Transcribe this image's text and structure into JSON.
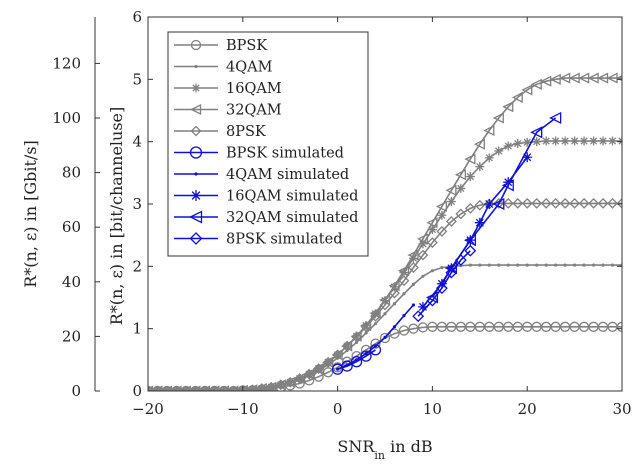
{
  "chart_data": {
    "type": "line",
    "title": "",
    "xlabel": {
      "main": "SNR",
      "sub": "in",
      "rest": " in dB"
    },
    "ylabel_left": "R*(n, ε) in [Gbit/s]",
    "ylabel_right": "R*(n, ε) in [bit/channeluse]",
    "xlim": [
      -20,
      30
    ],
    "ylim": [
      0,
      6
    ],
    "ylim_left": [
      0,
      137
    ],
    "xticks": [
      -20,
      -10,
      0,
      10,
      20,
      30
    ],
    "yticks": [
      0,
      1,
      2,
      3,
      4,
      5,
      6
    ],
    "yticks_left": [
      0,
      20,
      40,
      60,
      80,
      100,
      120
    ],
    "xtick_labels": [
      "−20",
      "−10",
      "0",
      "10",
      "20",
      "30"
    ],
    "ytick_labels": [
      "0",
      "1",
      "2",
      "3",
      "4",
      "5",
      "6"
    ],
    "ytick_labels_left": [
      "0",
      "20",
      "40",
      "60",
      "80",
      "100",
      "120"
    ],
    "grid": false,
    "legend_position": "top-left",
    "series_x": [
      -20,
      -19,
      -18,
      -17,
      -16,
      -15,
      -14,
      -13,
      -12,
      -11,
      -10,
      -9,
      -8,
      -7,
      -6,
      -5,
      -4,
      -3,
      -2,
      -1,
      0,
      1,
      2,
      3,
      4,
      5,
      6,
      7,
      8,
      9,
      10,
      11,
      12,
      13,
      14,
      15,
      16,
      17,
      18,
      19,
      20,
      21,
      22,
      23,
      24,
      25,
      26,
      27,
      28,
      29,
      30
    ],
    "series": [
      {
        "name": "BPSK",
        "color": "#808080",
        "marker": "circle",
        "values": [
          0,
          0,
          0,
          0,
          0,
          0,
          0,
          0,
          0,
          0,
          0.01,
          0.01,
          0.02,
          0.04,
          0.06,
          0.09,
          0.12,
          0.17,
          0.23,
          0.3,
          0.38,
          0.47,
          0.56,
          0.66,
          0.76,
          0.85,
          0.92,
          0.97,
          1.0,
          1.02,
          1.03,
          1.03,
          1.03,
          1.03,
          1.03,
          1.03,
          1.03,
          1.03,
          1.03,
          1.03,
          1.03,
          1.03,
          1.03,
          1.03,
          1.03,
          1.03,
          1.03,
          1.03,
          1.03,
          1.03,
          1.03
        ]
      },
      {
        "name": "4QAM",
        "color": "#808080",
        "marker": "dot",
        "values": [
          0,
          0,
          0,
          0,
          0,
          0,
          0,
          0,
          0,
          0,
          0.01,
          0.02,
          0.04,
          0.06,
          0.09,
          0.13,
          0.18,
          0.25,
          0.33,
          0.42,
          0.53,
          0.65,
          0.78,
          0.93,
          1.08,
          1.24,
          1.4,
          1.56,
          1.71,
          1.84,
          1.93,
          1.98,
          2.0,
          2.01,
          2.02,
          2.02,
          2.02,
          2.02,
          2.02,
          2.02,
          2.02,
          2.02,
          2.02,
          2.02,
          2.02,
          2.02,
          2.02,
          2.02,
          2.02,
          2.02,
          2.02
        ]
      },
      {
        "name": "16QAM",
        "color": "#808080",
        "marker": "star",
        "values": [
          0,
          0,
          0,
          0,
          0,
          0,
          0,
          0,
          0,
          0,
          0.01,
          0.02,
          0.04,
          0.06,
          0.1,
          0.14,
          0.2,
          0.27,
          0.36,
          0.46,
          0.58,
          0.72,
          0.88,
          1.05,
          1.24,
          1.45,
          1.67,
          1.9,
          2.13,
          2.36,
          2.59,
          2.82,
          3.04,
          3.25,
          3.44,
          3.6,
          3.74,
          3.85,
          3.93,
          3.97,
          3.99,
          4.0,
          4.01,
          4.01,
          4.01,
          4.01,
          4.01,
          4.01,
          4.01,
          4.01,
          4.01
        ]
      },
      {
        "name": "32QAM",
        "color": "#808080",
        "marker": "triangle-left",
        "values": [
          0,
          0,
          0,
          0,
          0,
          0,
          0,
          0,
          0,
          0,
          0.01,
          0.02,
          0.04,
          0.06,
          0.1,
          0.14,
          0.2,
          0.27,
          0.36,
          0.46,
          0.58,
          0.72,
          0.88,
          1.05,
          1.25,
          1.46,
          1.69,
          1.93,
          2.18,
          2.44,
          2.7,
          2.96,
          3.22,
          3.47,
          3.72,
          3.96,
          4.18,
          4.38,
          4.56,
          4.71,
          4.83,
          4.92,
          4.97,
          5.0,
          5.02,
          5.02,
          5.02,
          5.02,
          5.02,
          5.02,
          5.02
        ]
      },
      {
        "name": "8PSK",
        "color": "#808080",
        "marker": "diamond",
        "values": [
          0,
          0,
          0,
          0,
          0,
          0,
          0,
          0,
          0,
          0,
          0.01,
          0.02,
          0.04,
          0.06,
          0.1,
          0.14,
          0.2,
          0.27,
          0.36,
          0.46,
          0.58,
          0.72,
          0.87,
          1.03,
          1.2,
          1.38,
          1.57,
          1.77,
          1.98,
          2.18,
          2.38,
          2.56,
          2.72,
          2.84,
          2.93,
          2.98,
          3.0,
          3.01,
          3.01,
          3.01,
          3.01,
          3.01,
          3.01,
          3.01,
          3.01,
          3.01,
          3.01,
          3.01,
          3.01,
          3.01,
          3.01
        ]
      }
    ],
    "simulated": [
      {
        "name": "BPSK simulated",
        "color": "#1010d0",
        "marker": "circle",
        "x": [
          0,
          1,
          2,
          3,
          4
        ],
        "values": [
          0.35,
          0.4,
          0.47,
          0.56,
          0.66
        ]
      },
      {
        "name": "4QAM simulated",
        "color": "#1010d0",
        "marker": "dot",
        "x": [
          0,
          1,
          2,
          3,
          4,
          5,
          6,
          7,
          8
        ],
        "values": [
          0.35,
          0.42,
          0.5,
          0.6,
          0.72,
          0.86,
          1.03,
          1.21,
          1.38
        ]
      },
      {
        "name": "16QAM simulated",
        "color": "#1010d0",
        "marker": "star",
        "x": [
          9,
          11,
          12,
          14,
          15,
          16,
          18,
          20
        ],
        "values": [
          1.35,
          1.72,
          1.97,
          2.42,
          2.7,
          3.0,
          3.35,
          3.75
        ]
      },
      {
        "name": "32QAM simulated",
        "color": "#1010d0",
        "marker": "triangle-left",
        "x": [
          10,
          12,
          14,
          17,
          18,
          21,
          23
        ],
        "values": [
          1.5,
          1.97,
          2.42,
          3.0,
          3.3,
          4.15,
          4.38
        ]
      },
      {
        "name": "8PSK simulated",
        "color": "#1010d0",
        "marker": "diamond",
        "x": [
          8.5,
          10,
          11,
          12,
          13,
          14
        ],
        "values": [
          1.2,
          1.45,
          1.65,
          1.9,
          2.1,
          2.25
        ]
      }
    ]
  }
}
